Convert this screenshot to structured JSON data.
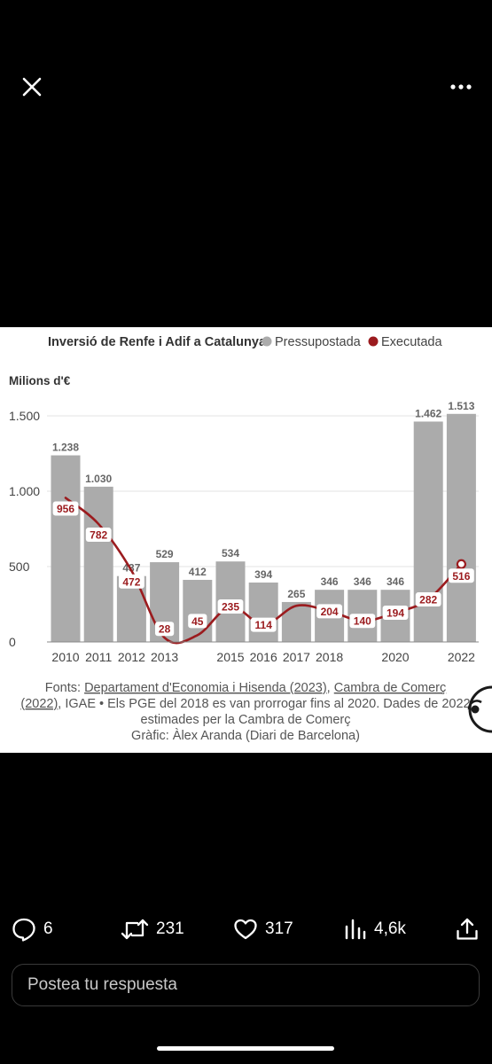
{
  "viewer": {
    "close_icon": "close-icon",
    "more_icon": "more-horizontal-icon"
  },
  "chart_data": {
    "type": "bar",
    "title": "Inversió de Renfe i Adif a Catalunya",
    "ylabel": "Milions d'€",
    "ylim": [
      0,
      1600
    ],
    "yticks": [
      0,
      500,
      1000,
      1500
    ],
    "ytick_labels": [
      "0",
      "500",
      "1.000",
      "1.500"
    ],
    "categories": [
      "2010",
      "2011",
      "2012",
      "2013",
      "2014",
      "2015",
      "2016",
      "2017",
      "2018",
      "2019",
      "2020",
      "2021",
      "2022"
    ],
    "xtick_labels": [
      "2010",
      "2011",
      "2012",
      "2013",
      "",
      "2015",
      "2016",
      "2017",
      "2018",
      "",
      "2020",
      "",
      "2022"
    ],
    "series": [
      {
        "name": "Pressupostada",
        "kind": "bar",
        "color": "#ababab",
        "values": [
          1238,
          1030,
          437,
          529,
          412,
          534,
          394,
          265,
          346,
          346,
          346,
          1462,
          1513
        ],
        "labels": [
          "1.238",
          "1.030",
          "437",
          "529",
          "412",
          "534",
          "394",
          "265",
          "346",
          "346",
          "346",
          "1.462",
          "1.513"
        ]
      },
      {
        "name": "Executada",
        "kind": "line",
        "color": "#9b1b1e",
        "values": [
          956,
          782,
          472,
          28,
          45,
          235,
          114,
          240,
          204,
          140,
          194,
          282,
          516
        ],
        "labels": [
          "956",
          "782",
          "472",
          "28",
          "45",
          "235",
          "114",
          "",
          "204",
          "140",
          "194",
          "282",
          "516"
        ]
      }
    ],
    "legend": "top"
  },
  "caption": {
    "prefix": "Fonts: ",
    "link1": "Departament d'Economia i Hisenda (2023)",
    "sep1": ", ",
    "link2": "Cambra de Comerç",
    "link2b": "(2022)",
    "line2_rest": ", IGAE • Els PGE del 2018 es van prorrogar fins al 2020. Dades de 2022",
    "line3": "estimades per la Cambra de Comerç",
    "line4": "Gràfic: Àlex Aranda (Diari de Barcelona)"
  },
  "actions": {
    "reply_count": "6",
    "retweet_count": "231",
    "like_count": "317",
    "views_count": "4,6k"
  },
  "reply_box": {
    "placeholder": "Postea tu respuesta"
  }
}
